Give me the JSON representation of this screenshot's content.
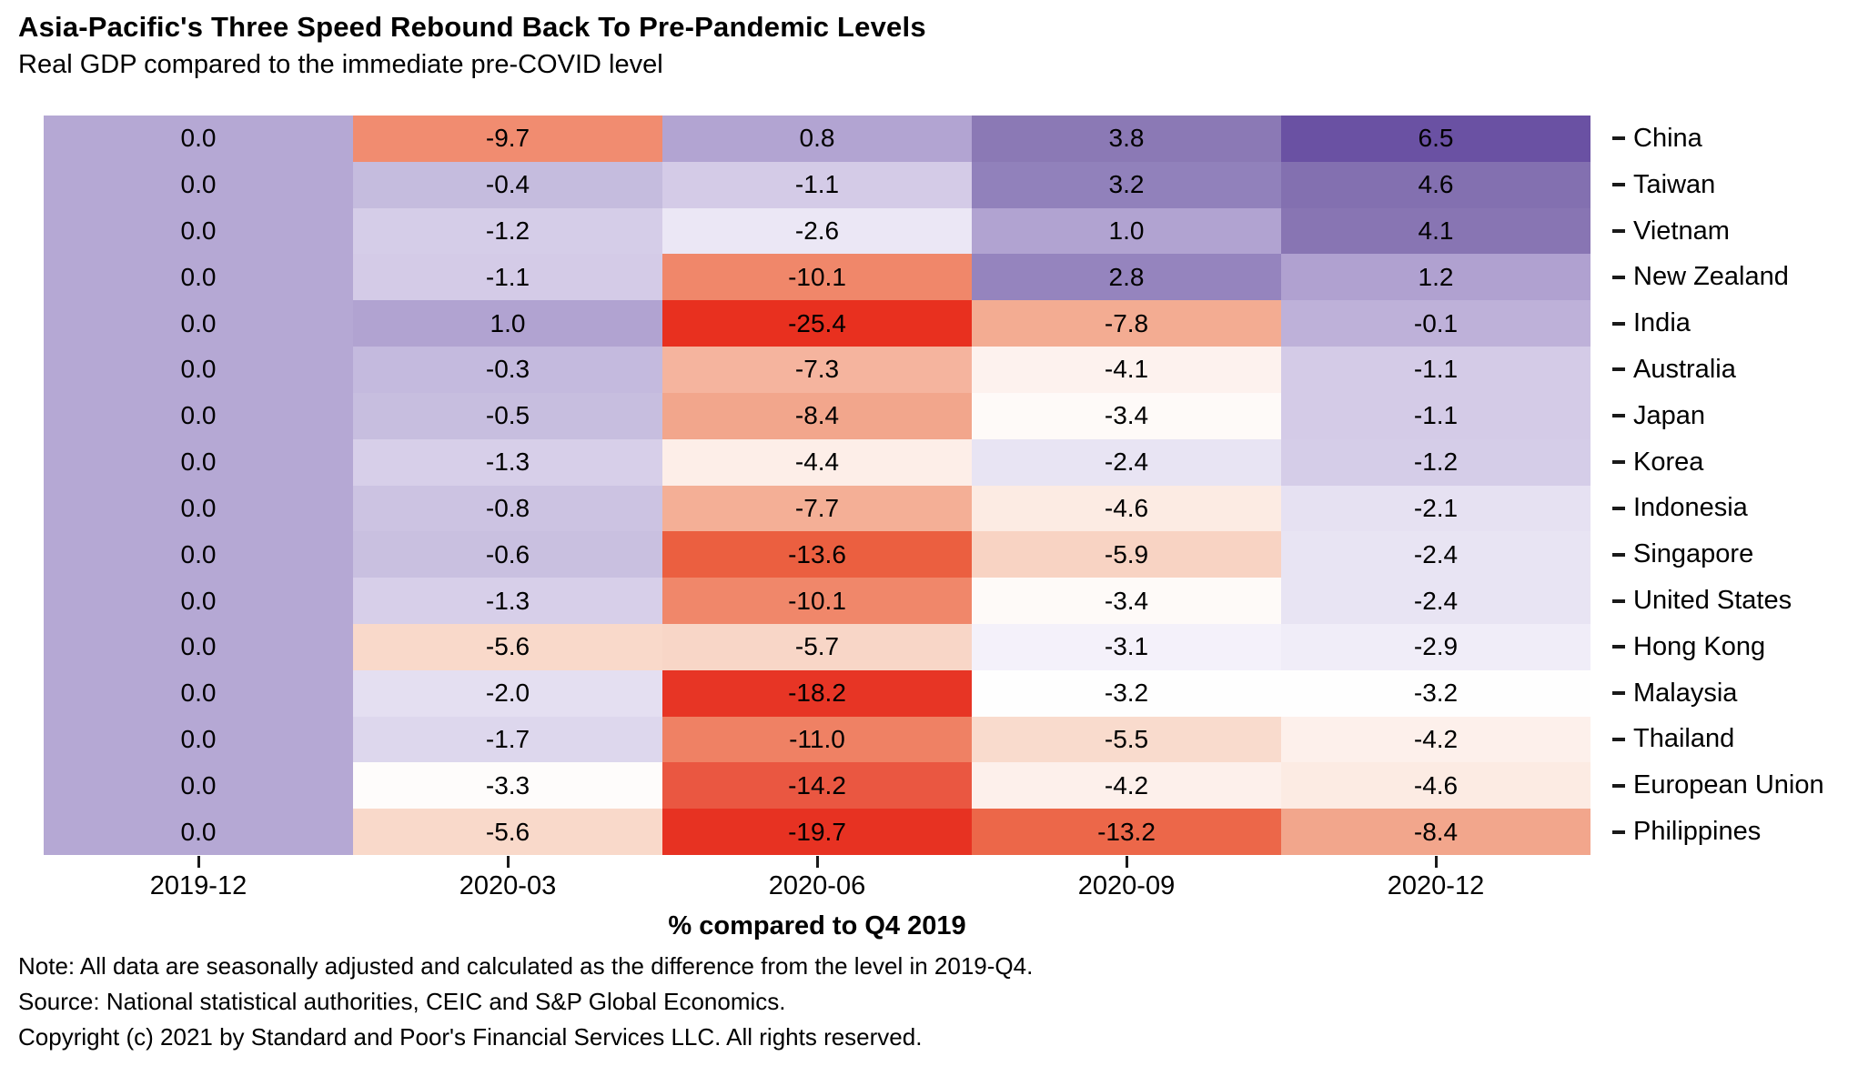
{
  "header": {
    "title": "Asia-Pacific's Three Speed Rebound Back To Pre-Pandemic Levels",
    "subtitle": "Real GDP compared to the immediate pre-COVID level"
  },
  "chart_data": {
    "type": "heatmap",
    "x_labels": [
      "2019-12",
      "2020-03",
      "2020-06",
      "2020-09",
      "2020-12"
    ],
    "rows": [
      {
        "label": "China",
        "values": [
          0.0,
          -9.7,
          0.8,
          3.8,
          6.5
        ]
      },
      {
        "label": "Taiwan",
        "values": [
          0.0,
          -0.4,
          -1.1,
          3.2,
          4.6
        ]
      },
      {
        "label": "Vietnam",
        "values": [
          0.0,
          -1.2,
          -2.6,
          1.0,
          4.1
        ]
      },
      {
        "label": "New Zealand",
        "values": [
          0.0,
          -1.1,
          -10.1,
          2.8,
          1.2
        ]
      },
      {
        "label": "India",
        "values": [
          0.0,
          1.0,
          -25.4,
          -7.8,
          -0.1
        ]
      },
      {
        "label": "Australia",
        "values": [
          0.0,
          -0.3,
          -7.3,
          -4.1,
          -1.1
        ]
      },
      {
        "label": "Japan",
        "values": [
          0.0,
          -0.5,
          -8.4,
          -3.4,
          -1.1
        ]
      },
      {
        "label": "Korea",
        "values": [
          0.0,
          -1.3,
          -4.4,
          -2.4,
          -1.2
        ]
      },
      {
        "label": "Indonesia",
        "values": [
          0.0,
          -0.8,
          -7.7,
          -4.6,
          -2.1
        ]
      },
      {
        "label": "Singapore",
        "values": [
          0.0,
          -0.6,
          -13.6,
          -5.9,
          -2.4
        ]
      },
      {
        "label": "United States",
        "values": [
          0.0,
          -1.3,
          -10.1,
          -3.4,
          -2.4
        ]
      },
      {
        "label": "Hong Kong",
        "values": [
          0.0,
          -5.6,
          -5.7,
          -3.1,
          -2.9
        ]
      },
      {
        "label": "Malaysia",
        "values": [
          0.0,
          -2.0,
          -18.2,
          -3.2,
          -3.2
        ]
      },
      {
        "label": "Thailand",
        "values": [
          0.0,
          -1.7,
          -11.0,
          -5.5,
          -4.2
        ]
      },
      {
        "label": "European Union",
        "values": [
          0.0,
          -3.3,
          -14.2,
          -4.2,
          -4.6
        ]
      },
      {
        "label": "Philippines",
        "values": [
          0.0,
          -5.6,
          -19.7,
          -13.2,
          -8.4
        ]
      }
    ],
    "xlabel": "% compared to Q4 2019",
    "value_decimals": 1,
    "cell_text_color": "#000000",
    "axis_text_color": "#1a1a1a",
    "legend": "none",
    "grid": "off",
    "color_scale": {
      "type": "piecewise-linear-diverging",
      "negative_end": "red",
      "positive_end": "purple",
      "stops": [
        [
          -25.4,
          "#e8301f"
        ],
        [
          -19.7,
          "#e73222"
        ],
        [
          -18.2,
          "#e73525"
        ],
        [
          -14.2,
          "#ea5741"
        ],
        [
          -13.6,
          "#eb5f40"
        ],
        [
          -13.2,
          "#ec6749"
        ],
        [
          -11.0,
          "#ef8164"
        ],
        [
          -10.1,
          "#f0876a"
        ],
        [
          -9.7,
          "#f18c70"
        ],
        [
          -8.4,
          "#f2a68c"
        ],
        [
          -7.8,
          "#f3ac92"
        ],
        [
          -7.7,
          "#f4af96"
        ],
        [
          -7.3,
          "#f5b49e"
        ],
        [
          -5.9,
          "#f8d3c3"
        ],
        [
          -5.7,
          "#f8d6c7"
        ],
        [
          -5.6,
          "#f9d9ca"
        ],
        [
          -5.5,
          "#f9dbcd"
        ],
        [
          -4.6,
          "#fcebe3"
        ],
        [
          -4.4,
          "#fdeee8"
        ],
        [
          -4.2,
          "#fdf0eb"
        ],
        [
          -4.1,
          "#fdf2ee"
        ],
        [
          -3.4,
          "#fefaf8"
        ],
        [
          -3.2,
          "#fefefe"
        ],
        [
          -3.1,
          "#f4f1fa"
        ],
        [
          -2.9,
          "#f0edf8"
        ],
        [
          -2.6,
          "#ebe7f5"
        ],
        [
          -2.4,
          "#e8e4f3"
        ],
        [
          -2.1,
          "#e6e1f2"
        ],
        [
          -2.0,
          "#e4dff1"
        ],
        [
          -1.7,
          "#ddd7ed"
        ],
        [
          -1.3,
          "#d7cfe9"
        ],
        [
          -1.2,
          "#d5cde8"
        ],
        [
          -1.1,
          "#d4cbe7"
        ],
        [
          -0.8,
          "#ccc3e2"
        ],
        [
          -0.6,
          "#c9c0e0"
        ],
        [
          -0.5,
          "#c7bedf"
        ],
        [
          -0.4,
          "#c5bcde"
        ],
        [
          -0.3,
          "#c4bade"
        ],
        [
          -0.1,
          "#beb1d9"
        ],
        [
          0.0,
          "#b5a8d4"
        ],
        [
          0.8,
          "#b2a4d2"
        ],
        [
          1.0,
          "#b1a3d1"
        ],
        [
          1.2,
          "#b0a1d0"
        ],
        [
          2.8,
          "#9584be"
        ],
        [
          3.2,
          "#9181bb"
        ],
        [
          3.8,
          "#8b79b5"
        ],
        [
          4.1,
          "#8875b3"
        ],
        [
          4.6,
          "#8370b0"
        ],
        [
          6.5,
          "#6a51a3"
        ]
      ]
    }
  },
  "footnotes": {
    "note": "Note: All data are seasonally adjusted and calculated as the difference from the level in 2019-Q4.",
    "source": "Source: National statistical authorities, CEIC and S&P Global Economics.",
    "copyright": "Copyright (c) 2021 by Standard and Poor's Financial Services LLC. All rights reserved."
  }
}
